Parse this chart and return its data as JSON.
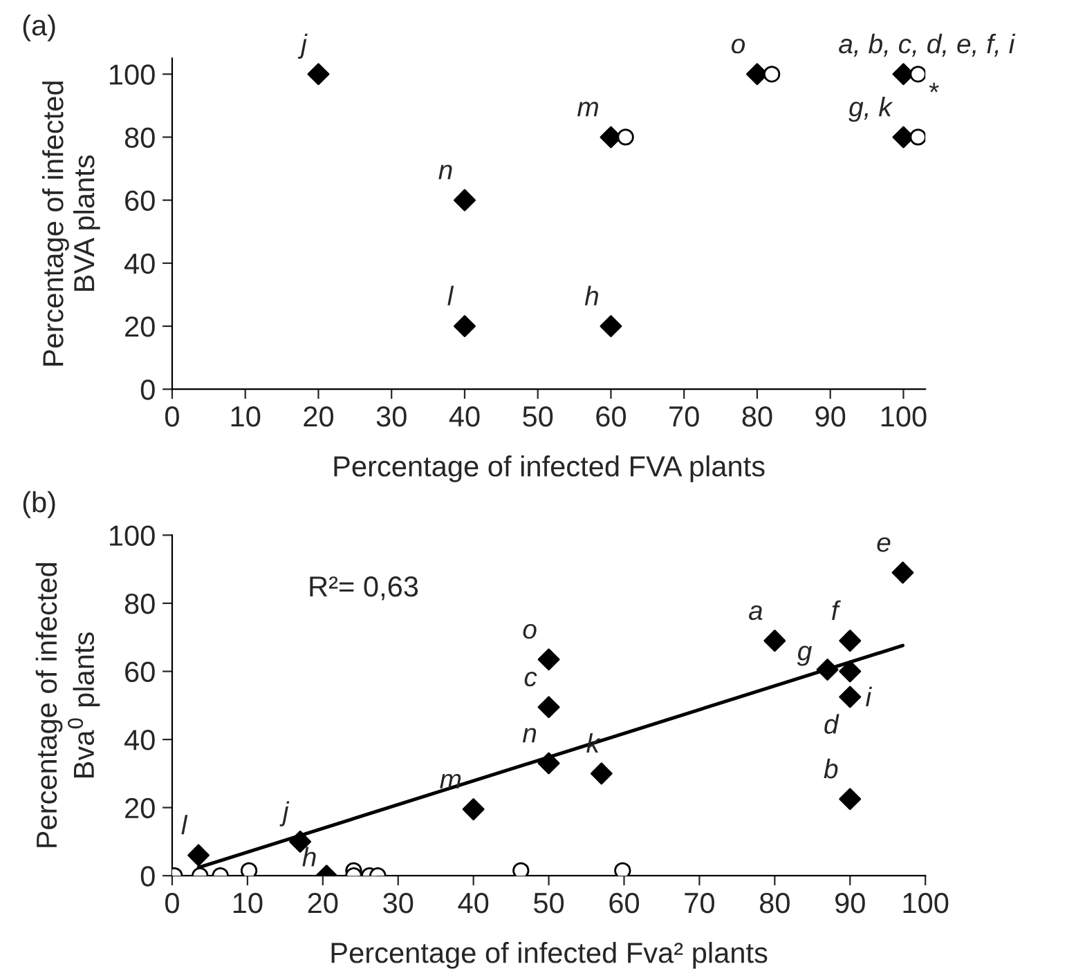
{
  "chart_data": [
    {
      "type": "scatter",
      "title": "(a)",
      "xlabel": "Percentage of infected FVA plants",
      "ylabel": "Percentage of infected\nBVA plants",
      "xlim": [
        0,
        103
      ],
      "ylim": [
        0,
        105
      ],
      "xticks": [
        0,
        10,
        20,
        30,
        40,
        50,
        60,
        70,
        80,
        90,
        100
      ],
      "yticks": [
        0,
        20,
        40,
        60,
        80,
        100
      ],
      "grid": false,
      "legend": false,
      "series": [
        {
          "color": "#000000",
          "marker": "diamond",
          "x": [
            20,
            40,
            40,
            60,
            60,
            80,
            100,
            100
          ],
          "values": [
            100,
            60,
            20,
            20,
            80,
            100,
            100,
            80
          ]
        },
        {
          "color": "#ffffff",
          "marker": "circle",
          "x": [
            62,
            82,
            102,
            102
          ],
          "values": [
            80,
            100,
            100,
            80
          ]
        }
      ],
      "annotations": [
        {
          "text": "j",
          "x": 20,
          "y": 100
        },
        {
          "text": "n",
          "x": 40,
          "y": 60
        },
        {
          "text": "l",
          "x": 40,
          "y": 20
        },
        {
          "text": "h",
          "x": 60,
          "y": 20
        },
        {
          "text": "m",
          "x": 60,
          "y": 80
        },
        {
          "text": "o",
          "x": 80,
          "y": 100
        },
        {
          "text": "a, b, c, d, e, f, i",
          "x": 100,
          "y": 100
        },
        {
          "text": "g, k",
          "x": 100,
          "y": 80
        },
        {
          "text": "*",
          "x": 102,
          "y": 100
        }
      ]
    },
    {
      "type": "scatter",
      "title": "(b)",
      "xlabel": "Percentage of infected Fva² plants",
      "ylabel": "Percentage of infected\nBva$^{0}$ plants",
      "xlim": [
        0,
        100
      ],
      "ylim": [
        0,
        100
      ],
      "xticks": [
        0,
        10,
        20,
        30,
        40,
        50,
        60,
        70,
        80,
        90,
        100
      ],
      "yticks": [
        0,
        20,
        40,
        60,
        80,
        100
      ],
      "grid": false,
      "legend": false,
      "series": [
        {
          "color": "#000000",
          "marker": "diamond",
          "x": [
            3.5,
            17,
            20.5,
            40,
            50,
            50,
            50,
            57,
            80,
            87,
            90,
            90,
            90,
            90,
            97
          ],
          "values": [
            6,
            10,
            0,
            19.5,
            33,
            49.5,
            63.5,
            30,
            69,
            60.5,
            69,
            60,
            52.5,
            22.5,
            89
          ]
        },
        {
          "color": "#ffffff",
          "marker": "circle",
          "x": [
            0.3,
            3.7,
            6.4,
            10.2,
            24.1,
            24.1,
            26.2,
            27.3,
            46.3,
            59.8
          ],
          "values": [
            0,
            0,
            0,
            1.5,
            1.5,
            0,
            0,
            0,
            1.5,
            1.5
          ]
        },
        {
          "type": "line",
          "color": "#000000",
          "marker": "none",
          "x": [
            3.5,
            97
          ],
          "values": [
            2.4,
            67.6
          ]
        }
      ],
      "annotations": [
        "R²= 0,63",
        {
          "text": "l",
          "x": 3.5,
          "y": 6
        },
        {
          "text": "j",
          "x": 17,
          "y": 10
        },
        {
          "text": "h",
          "x": 20.5,
          "y": 0
        },
        {
          "text": "m",
          "x": 40,
          "y": 19.5
        },
        {
          "text": "n",
          "x": 50,
          "y": 33
        },
        {
          "text": "c",
          "x": 50,
          "y": 49.5
        },
        {
          "text": "o",
          "x": 50,
          "y": 63.5
        },
        {
          "text": "k",
          "x": 57,
          "y": 30
        },
        {
          "text": "a",
          "x": 80,
          "y": 69
        },
        {
          "text": "g",
          "x": 87,
          "y": 60.5
        },
        {
          "text": "f",
          "x": 90,
          "y": 69
        },
        {
          "text": "i",
          "x": 90,
          "y": 60
        },
        {
          "text": "d",
          "x": 90,
          "y": 52.5
        },
        {
          "text": "b",
          "x": 90,
          "y": 22.5
        },
        {
          "text": "e",
          "x": 97,
          "y": 89
        }
      ]
    }
  ]
}
